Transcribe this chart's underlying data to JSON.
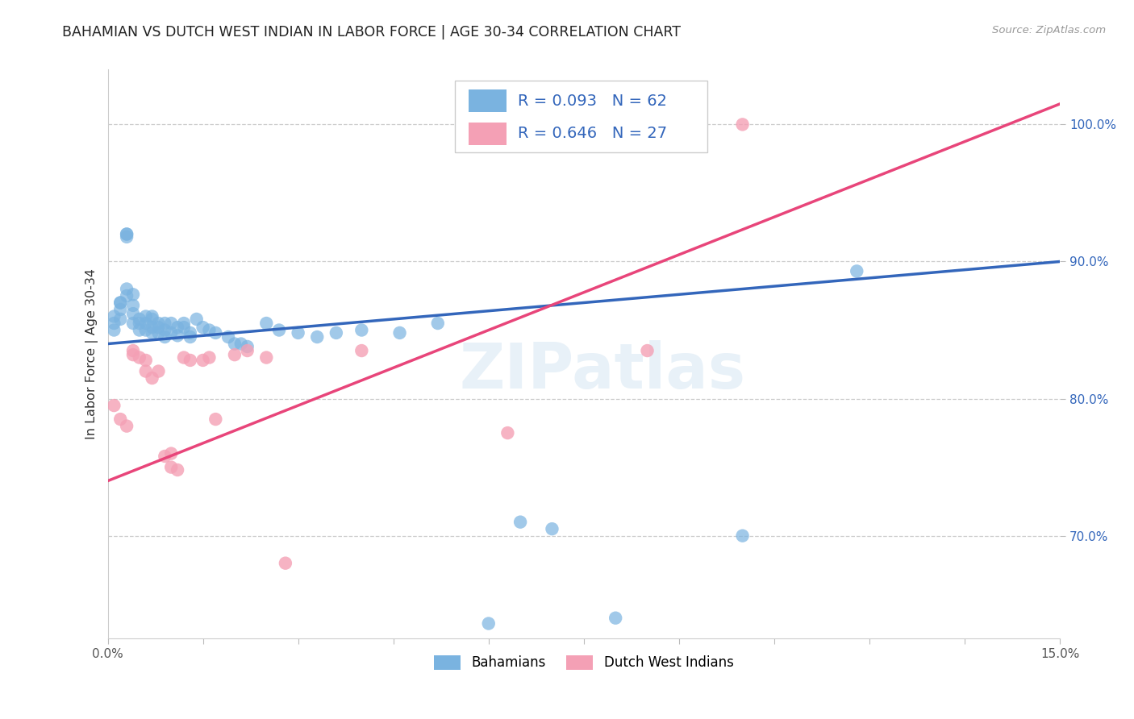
{
  "title": "BAHAMIAN VS DUTCH WEST INDIAN IN LABOR FORCE | AGE 30-34 CORRELATION CHART",
  "source": "Source: ZipAtlas.com",
  "ylabel": "In Labor Force | Age 30-34",
  "ytick_labels": [
    "70.0%",
    "80.0%",
    "90.0%",
    "100.0%"
  ],
  "ytick_values": [
    0.7,
    0.8,
    0.9,
    1.0
  ],
  "xlim": [
    0.0,
    0.15
  ],
  "ylim": [
    0.625,
    1.04
  ],
  "blue_label": "Bahamians",
  "pink_label": "Dutch West Indians",
  "blue_r": "R = 0.093",
  "blue_n": "N = 62",
  "pink_r": "R = 0.646",
  "pink_n": "N = 27",
  "blue_color": "#7ab3e0",
  "pink_color": "#f4a0b5",
  "trend_blue": "#3366bb",
  "trend_pink": "#e8457a",
  "watermark": "ZIPatlas",
  "blue_line_x": [
    0.0,
    0.15
  ],
  "blue_line_y": [
    0.84,
    0.9
  ],
  "pink_line_x": [
    0.0,
    0.15
  ],
  "pink_line_y": [
    0.74,
    1.015
  ],
  "blue_x": [
    0.001,
    0.001,
    0.001,
    0.002,
    0.002,
    0.002,
    0.002,
    0.003,
    0.003,
    0.003,
    0.003,
    0.003,
    0.004,
    0.004,
    0.004,
    0.004,
    0.005,
    0.005,
    0.005,
    0.006,
    0.006,
    0.006,
    0.007,
    0.007,
    0.007,
    0.007,
    0.008,
    0.008,
    0.008,
    0.009,
    0.009,
    0.009,
    0.01,
    0.01,
    0.011,
    0.011,
    0.012,
    0.012,
    0.013,
    0.013,
    0.014,
    0.015,
    0.016,
    0.017,
    0.019,
    0.02,
    0.021,
    0.022,
    0.025,
    0.027,
    0.03,
    0.033,
    0.036,
    0.04,
    0.046,
    0.052,
    0.06,
    0.065,
    0.07,
    0.08,
    0.1,
    0.118
  ],
  "blue_y": [
    0.86,
    0.855,
    0.85,
    0.87,
    0.87,
    0.865,
    0.858,
    0.88,
    0.875,
    0.92,
    0.92,
    0.918,
    0.876,
    0.868,
    0.862,
    0.855,
    0.858,
    0.855,
    0.85,
    0.86,
    0.855,
    0.85,
    0.86,
    0.858,
    0.852,
    0.848,
    0.855,
    0.852,
    0.848,
    0.855,
    0.85,
    0.845,
    0.855,
    0.848,
    0.852,
    0.846,
    0.855,
    0.852,
    0.848,
    0.845,
    0.858,
    0.852,
    0.85,
    0.848,
    0.845,
    0.84,
    0.84,
    0.838,
    0.855,
    0.85,
    0.848,
    0.845,
    0.848,
    0.85,
    0.848,
    0.855,
    0.636,
    0.71,
    0.705,
    0.64,
    0.7,
    0.893
  ],
  "pink_x": [
    0.001,
    0.002,
    0.003,
    0.004,
    0.004,
    0.005,
    0.006,
    0.006,
    0.007,
    0.008,
    0.009,
    0.01,
    0.01,
    0.011,
    0.012,
    0.013,
    0.015,
    0.016,
    0.017,
    0.02,
    0.022,
    0.025,
    0.028,
    0.04,
    0.063,
    0.085,
    0.1
  ],
  "pink_y": [
    0.795,
    0.785,
    0.78,
    0.835,
    0.832,
    0.83,
    0.828,
    0.82,
    0.815,
    0.82,
    0.758,
    0.76,
    0.75,
    0.748,
    0.83,
    0.828,
    0.828,
    0.83,
    0.785,
    0.832,
    0.835,
    0.83,
    0.68,
    0.835,
    0.775,
    0.835,
    1.0
  ]
}
